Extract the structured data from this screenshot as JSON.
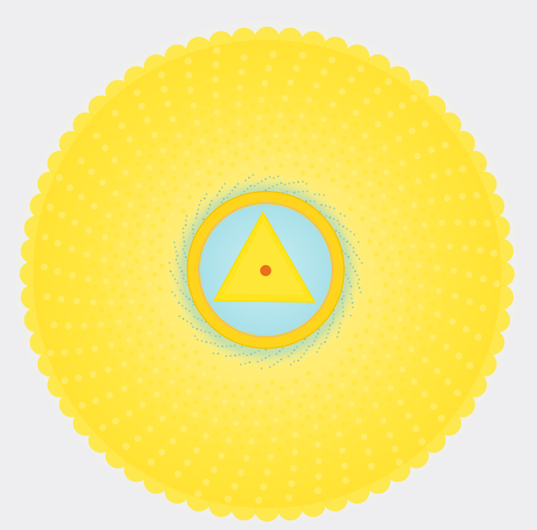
{
  "image": {
    "subject": "mandala",
    "colors": {
      "background": "#eeeef0",
      "glow": "#fff7b0",
      "petals": "#ffe633",
      "petals_light": "#fff08a",
      "aura": "#9fd8d8",
      "ring": "#ffd21a",
      "inner_disc": "#bfeaf0",
      "triangle": "#ffe21f",
      "dot": "#e8701a"
    },
    "elements": {
      "petal_rings": 3,
      "triangle_orientation": "point-up"
    }
  }
}
